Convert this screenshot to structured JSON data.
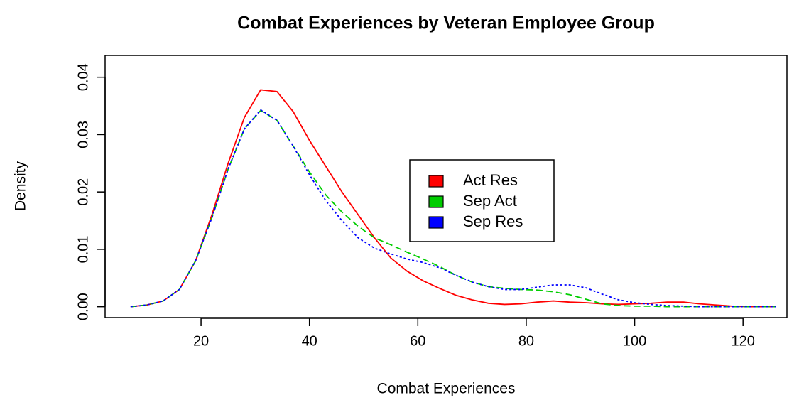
{
  "chart_data": {
    "type": "line",
    "title": "Combat Experiences by Veteran Employee Group",
    "xlabel": "Combat Experiences",
    "ylabel": "Density",
    "x": [
      7,
      10,
      13,
      16,
      19,
      22,
      25,
      28,
      31,
      34,
      37,
      40,
      43,
      46,
      49,
      52,
      55,
      58,
      61,
      64,
      67,
      70,
      73,
      76,
      79,
      82,
      85,
      88,
      91,
      94,
      97,
      100,
      103,
      106,
      109,
      112,
      115,
      118,
      121,
      124,
      126
    ],
    "series": [
      {
        "name": "Act Res",
        "color": "#ff0000",
        "dash": "solid",
        "values": [
          0,
          0.0003,
          0.001,
          0.003,
          0.008,
          0.016,
          0.025,
          0.033,
          0.0378,
          0.0375,
          0.034,
          0.029,
          0.0245,
          0.02,
          0.016,
          0.012,
          0.0085,
          0.0062,
          0.0045,
          0.0032,
          0.002,
          0.0012,
          0.0006,
          0.0004,
          0.0005,
          0.0008,
          0.001,
          0.0008,
          0.0007,
          0.0005,
          0.0004,
          0.0005,
          0.0006,
          0.0008,
          0.0008,
          0.0005,
          0.0003,
          0.0001,
          0,
          0,
          0
        ]
      },
      {
        "name": "Sep Act",
        "color": "#00cd00",
        "dash": "dashed",
        "values": [
          0,
          0.0003,
          0.001,
          0.003,
          0.008,
          0.0155,
          0.024,
          0.031,
          0.0342,
          0.0325,
          0.028,
          0.0235,
          0.0195,
          0.0165,
          0.014,
          0.012,
          0.0108,
          0.0095,
          0.0083,
          0.007,
          0.0055,
          0.0043,
          0.0035,
          0.0032,
          0.003,
          0.0029,
          0.0026,
          0.0021,
          0.0013,
          0.0005,
          0.0002,
          0.0001,
          0.0001,
          0,
          0,
          0,
          0,
          0,
          0,
          0,
          0
        ]
      },
      {
        "name": "Sep Res",
        "color": "#0000ff",
        "dash": "dotted",
        "values": [
          0,
          0.0003,
          0.001,
          0.003,
          0.008,
          0.0155,
          0.024,
          0.031,
          0.0343,
          0.0325,
          0.028,
          0.023,
          0.0185,
          0.015,
          0.012,
          0.0102,
          0.0092,
          0.0083,
          0.0077,
          0.0068,
          0.0055,
          0.0043,
          0.0035,
          0.003,
          0.003,
          0.0034,
          0.0038,
          0.0038,
          0.0033,
          0.0022,
          0.0012,
          0.0007,
          0.0004,
          0.0002,
          0.0001,
          0,
          0,
          0,
          0,
          0,
          0
        ]
      }
    ],
    "xlim": [
      2.3,
      128.1
    ],
    "ylim": [
      -0.0019,
      0.0438
    ],
    "xticks": [
      20,
      40,
      60,
      80,
      100,
      120
    ],
    "yticks": [
      {
        "value": 0,
        "label": "0.00"
      },
      0.01,
      0.02,
      0.03,
      0.04
    ],
    "legend_position": "center"
  }
}
